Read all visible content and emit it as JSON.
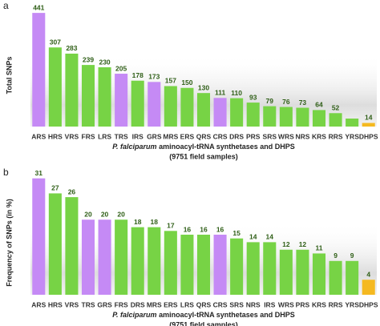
{
  "chart_data": [
    {
      "type": "bar",
      "panel_label": "a",
      "ylabel": "Total SNPs",
      "xlabel_italic": "P. falciparum",
      "xlabel": "aminoacyl-tRNA synthetases and DHPS",
      "xlabel2": "(9751 field samples)",
      "categories": [
        "ARS",
        "HRS",
        "VRS",
        "FRS",
        "LRS",
        "TRS",
        "IRS",
        "GRS",
        "MRS",
        "ERS",
        "QRS",
        "CRS",
        "DRS",
        "PRS",
        "SRS",
        "WRS",
        "NRS",
        "KRS",
        "RRS",
        "YRS",
        "DHPS"
      ],
      "values": [
        441,
        307,
        283,
        239,
        230,
        205,
        178,
        173,
        157,
        150,
        130,
        111,
        110,
        93,
        79,
        76,
        73,
        64,
        52,
        31,
        14
      ],
      "value_labels": [
        "441",
        "307",
        "283",
        "239",
        "230",
        "205",
        "178",
        "173",
        "157",
        "150",
        "130",
        "111",
        "110",
        "93",
        "79",
        "76",
        "73",
        "64",
        "52",
        null,
        "14"
      ],
      "colors": [
        "#c58af5",
        "#77d345",
        "#77d345",
        "#77d345",
        "#77d345",
        "#c58af5",
        "#77d345",
        "#c58af5",
        "#77d345",
        "#77d345",
        "#77d345",
        "#c58af5",
        "#77d345",
        "#77d345",
        "#77d345",
        "#77d345",
        "#77d345",
        "#77d345",
        "#77d345",
        "#77d345",
        "#f5b921"
      ],
      "ylim": [
        0,
        460
      ]
    },
    {
      "type": "bar",
      "panel_label": "b",
      "ylabel": "Frequency of SNPs (in %)",
      "xlabel_italic": "P. falciparum",
      "xlabel": "aminoacyl-tRNA synthetases and DHPS",
      "xlabel2": "(9751 field samples)",
      "categories": [
        "ARS",
        "HRS",
        "VRS",
        "TRS",
        "GRS",
        "FRS",
        "DRS",
        "MRS",
        "ERS",
        "LRS",
        "QRS",
        "CRS",
        "SRS",
        "NRS",
        "IRS",
        "WRS",
        "PRS",
        "KRS",
        "RRS",
        "YRS",
        "DHPS"
      ],
      "values": [
        31,
        27,
        26,
        20,
        20,
        20,
        18,
        18,
        17,
        16,
        16,
        16,
        15,
        14,
        14,
        12,
        12,
        11,
        9,
        9,
        4
      ],
      "value_labels": [
        "31",
        "27",
        "26",
        "20",
        "20",
        "20",
        "18",
        "18",
        "17",
        "16",
        "16",
        "16",
        "15",
        "14",
        "14",
        "12",
        "12",
        "11",
        "9",
        "9",
        "4"
      ],
      "colors": [
        "#c58af5",
        "#77d345",
        "#77d345",
        "#c58af5",
        "#c58af5",
        "#77d345",
        "#77d345",
        "#77d345",
        "#77d345",
        "#77d345",
        "#77d345",
        "#c58af5",
        "#77d345",
        "#77d345",
        "#77d345",
        "#77d345",
        "#77d345",
        "#77d345",
        "#77d345",
        "#77d345",
        "#f5b921"
      ],
      "ylim": [
        0,
        32
      ]
    }
  ]
}
